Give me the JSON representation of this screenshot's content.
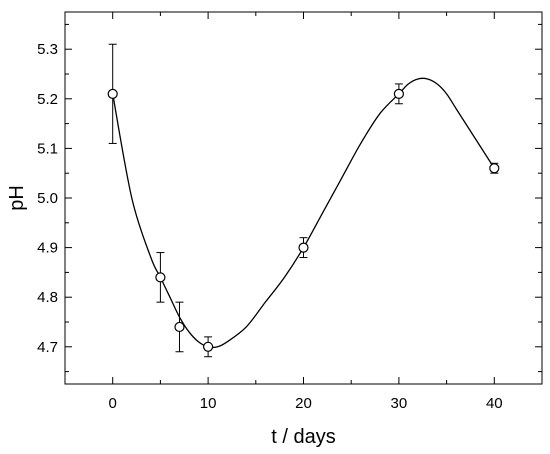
{
  "chart_data": {
    "type": "scatter",
    "xlabel": "t / days",
    "ylabel": "pH",
    "xlim": [
      -5,
      45
    ],
    "ylim": [
      4.625,
      5.375
    ],
    "xticks": [
      0,
      10,
      20,
      30,
      40
    ],
    "yticks": [
      4.7,
      4.8,
      4.9,
      5.0,
      5.1,
      5.2,
      5.3
    ],
    "xtick_labels": [
      "0",
      "10",
      "20",
      "30",
      "40"
    ],
    "ytick_labels": [
      "4.7",
      "4.8",
      "4.9",
      "5.0",
      "5.1",
      "5.2",
      "5.3"
    ],
    "grid": false,
    "series": [
      {
        "marker": "open-circle",
        "color": "#000000",
        "x": [
          0,
          5,
          7,
          10,
          20,
          30,
          40
        ],
        "y": [
          5.21,
          4.84,
          4.74,
          4.7,
          4.9,
          5.21,
          5.06
        ],
        "error": [
          0.1,
          0.05,
          0.05,
          0.02,
          0.02,
          0.02,
          0.01
        ]
      }
    ],
    "fit_curve": {
      "type": "smooth",
      "color": "#000000",
      "x": [
        0,
        2,
        4,
        5,
        6,
        7,
        8,
        9,
        10,
        11,
        12,
        14,
        16,
        18,
        20,
        22,
        24,
        26,
        28,
        30,
        31,
        32,
        33,
        34,
        35,
        36,
        37,
        38,
        39,
        40
      ],
      "y": [
        5.21,
        5.0,
        4.88,
        4.84,
        4.8,
        4.76,
        4.73,
        4.71,
        4.7,
        4.7,
        4.71,
        4.74,
        4.79,
        4.84,
        4.9,
        4.97,
        5.04,
        5.11,
        5.17,
        5.21,
        5.23,
        5.24,
        5.24,
        5.23,
        5.21,
        5.18,
        5.15,
        5.12,
        5.09,
        5.06
      ]
    }
  }
}
